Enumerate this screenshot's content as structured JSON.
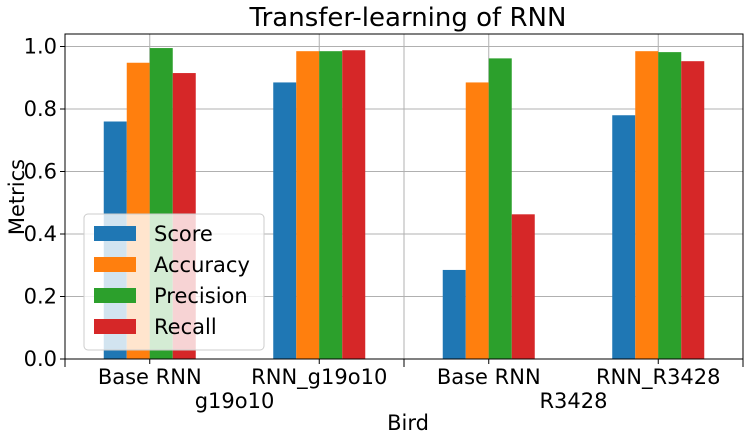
{
  "chart_data": {
    "type": "bar",
    "title": "Transfer-learning of RNN",
    "xlabel": "Bird",
    "ylabel": "Metrics",
    "ylim": [
      0,
      1.04
    ],
    "yticks": [
      "0.0",
      "0.2",
      "0.4",
      "0.6",
      "0.8",
      "1.0"
    ],
    "grid": true,
    "legend_position": "lower-left",
    "categories": [
      "Base RNN",
      "RNN_g19o10",
      "Base RNN",
      "RNN_R3428"
    ],
    "groups": [
      "g19o10",
      "R3428"
    ],
    "series": [
      {
        "name": "Score",
        "color": "#1f77b4",
        "values": [
          0.76,
          0.885,
          0.285,
          0.78
        ]
      },
      {
        "name": "Accuracy",
        "color": "#ff7f0e",
        "values": [
          0.948,
          0.985,
          0.885,
          0.985
        ]
      },
      {
        "name": "Precision",
        "color": "#2ca02c",
        "values": [
          0.995,
          0.985,
          0.962,
          0.982
        ]
      },
      {
        "name": "Recall",
        "color": "#d62728",
        "values": [
          0.915,
          0.988,
          0.463,
          0.953
        ]
      }
    ]
  }
}
